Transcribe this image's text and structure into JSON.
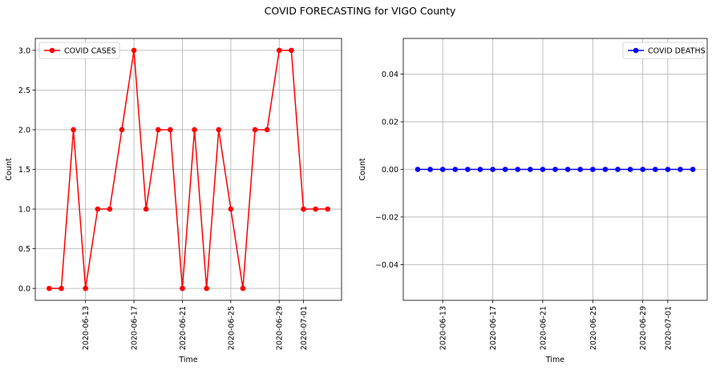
{
  "suptitle": "COVID FORECASTING for VIGO County",
  "chart_data": [
    {
      "type": "line",
      "xlabel": "Time",
      "ylabel": "Count",
      "x": [
        "2020-06-10",
        "2020-06-11",
        "2020-06-12",
        "2020-06-13",
        "2020-06-14",
        "2020-06-15",
        "2020-06-16",
        "2020-06-17",
        "2020-06-18",
        "2020-06-19",
        "2020-06-20",
        "2020-06-21",
        "2020-06-22",
        "2020-06-23",
        "2020-06-24",
        "2020-06-25",
        "2020-06-26",
        "2020-06-27",
        "2020-06-28",
        "2020-06-29",
        "2020-06-30",
        "2020-07-01",
        "2020-07-02",
        "2020-07-03"
      ],
      "xtick_labels": [
        "2020-06-13",
        "2020-06-17",
        "2020-06-21",
        "2020-06-25",
        "2020-06-29",
        "2020-07-01"
      ],
      "ylim": [
        -0.15,
        3.15
      ],
      "yticks": [
        0.0,
        0.5,
        1.0,
        1.5,
        2.0,
        2.5,
        3.0
      ],
      "ytick_labels": [
        "0.0",
        "0.5",
        "1.0",
        "1.5",
        "2.0",
        "2.5",
        "3.0"
      ],
      "grid": true,
      "legend_position": "top-left",
      "series": [
        {
          "name": "COVID CASES",
          "color": "#ff0000",
          "marker": "circle",
          "values": [
            0,
            0,
            2,
            0,
            1,
            1,
            2,
            3,
            1,
            2,
            2,
            0,
            2,
            0,
            2,
            1,
            0,
            2,
            2,
            3,
            3,
            1,
            1,
            1
          ]
        }
      ]
    },
    {
      "type": "line",
      "xlabel": "Time",
      "ylabel": "Count",
      "x": [
        "2020-06-11",
        "2020-06-12",
        "2020-06-13",
        "2020-06-14",
        "2020-06-15",
        "2020-06-16",
        "2020-06-17",
        "2020-06-18",
        "2020-06-19",
        "2020-06-20",
        "2020-06-21",
        "2020-06-22",
        "2020-06-23",
        "2020-06-24",
        "2020-06-25",
        "2020-06-26",
        "2020-06-27",
        "2020-06-28",
        "2020-06-29",
        "2020-06-30",
        "2020-07-01",
        "2020-07-02",
        "2020-07-03"
      ],
      "xtick_labels": [
        "2020-06-13",
        "2020-06-17",
        "2020-06-21",
        "2020-06-25",
        "2020-06-29",
        "2020-07-01"
      ],
      "ylim": [
        -0.055,
        0.055
      ],
      "yticks": [
        -0.04,
        -0.02,
        0.0,
        0.02,
        0.04
      ],
      "ytick_labels": [
        "−0.04",
        "−0.02",
        "0.00",
        "0.02",
        "0.04"
      ],
      "grid": true,
      "legend_position": "top-right",
      "series": [
        {
          "name": "COVID DEATHS",
          "color": "#0000ff",
          "marker": "circle",
          "values": [
            0,
            0,
            0,
            0,
            0,
            0,
            0,
            0,
            0,
            0,
            0,
            0,
            0,
            0,
            0,
            0,
            0,
            0,
            0,
            0,
            0,
            0,
            0
          ]
        }
      ]
    }
  ]
}
